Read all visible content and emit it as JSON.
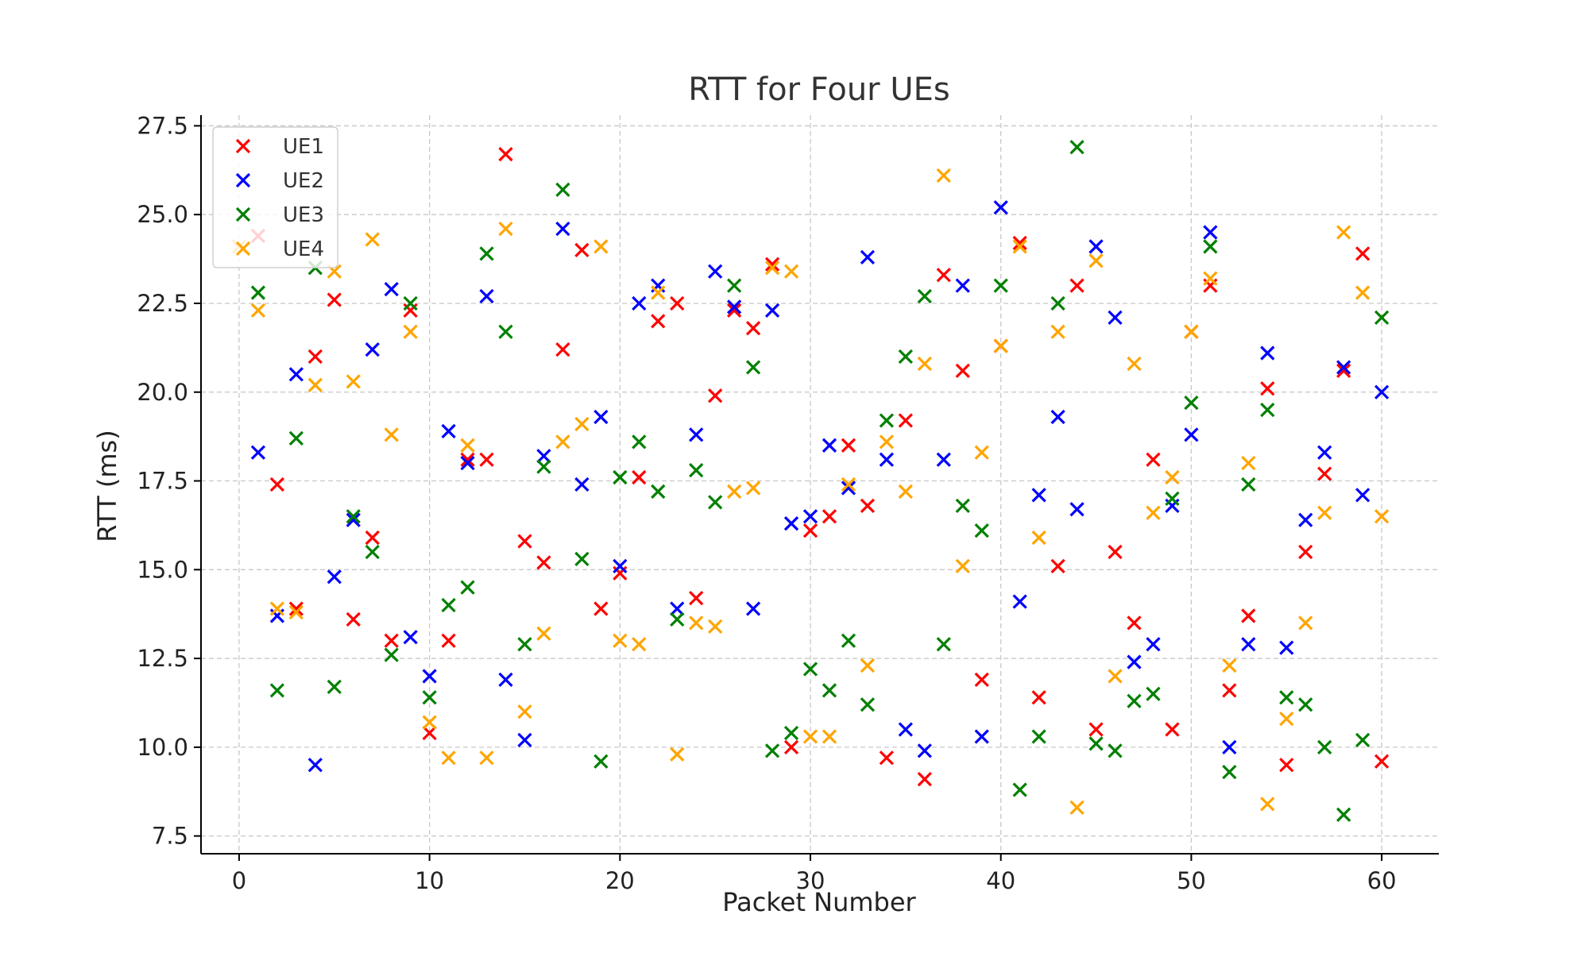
{
  "chart_data": {
    "type": "scatter",
    "title": "RTT for Four UEs",
    "xlabel": "Packet Number",
    "ylabel": "RTT (ms)",
    "xlim": [
      -2,
      63
    ],
    "ylim": [
      7.0,
      27.8
    ],
    "xticks": [
      0,
      10,
      20,
      30,
      40,
      50,
      60
    ],
    "yticks": [
      7.5,
      10.0,
      12.5,
      15.0,
      17.5,
      20.0,
      22.5,
      25.0,
      27.5
    ],
    "grid": true,
    "legend_position": "top-left",
    "marker": "x",
    "series": [
      {
        "name": "UE1",
        "color": "#ff0000",
        "x": [
          1,
          2,
          3,
          4,
          5,
          6,
          7,
          8,
          9,
          10,
          11,
          12,
          13,
          14,
          15,
          16,
          17,
          18,
          19,
          20,
          21,
          22,
          23,
          24,
          25,
          26,
          27,
          28,
          29,
          30,
          31,
          32,
          33,
          34,
          35,
          36,
          37,
          38,
          39,
          40,
          41,
          42,
          43,
          44,
          45,
          46,
          47,
          48,
          49,
          50,
          51,
          52,
          53,
          54,
          55,
          56,
          57,
          58,
          59,
          60
        ],
        "y": [
          24.4,
          17.4,
          13.9,
          21.0,
          22.6,
          13.6,
          15.9,
          13.0,
          22.3,
          10.4,
          13.0,
          18.1,
          18.1,
          26.7,
          15.8,
          15.2,
          21.2,
          24.0,
          13.9,
          14.9,
          17.6,
          22.0,
          22.5,
          14.2,
          19.9,
          22.3,
          21.8,
          23.6,
          10.0,
          16.1,
          16.5,
          18.5,
          16.8,
          9.7,
          19.2,
          9.1,
          23.3,
          20.6,
          11.9,
          21.3,
          24.2,
          11.4,
          15.1,
          23.0,
          10.5,
          15.5,
          13.5,
          18.1,
          10.5,
          21.7,
          23.0,
          11.6,
          13.7,
          20.1,
          9.5,
          15.5,
          17.7,
          20.6,
          23.9,
          9.6
        ]
      },
      {
        "name": "UE2",
        "color": "#0000ff",
        "x": [
          1,
          2,
          3,
          4,
          5,
          6,
          7,
          8,
          9,
          10,
          11,
          12,
          13,
          14,
          15,
          16,
          17,
          18,
          19,
          20,
          21,
          22,
          23,
          24,
          25,
          26,
          27,
          28,
          29,
          30,
          31,
          32,
          33,
          34,
          35,
          36,
          37,
          38,
          39,
          40,
          41,
          42,
          43,
          44,
          45,
          46,
          47,
          48,
          49,
          50,
          51,
          52,
          53,
          54,
          55,
          56,
          57,
          58,
          59,
          60
        ],
        "y": [
          18.3,
          13.7,
          20.5,
          9.5,
          14.8,
          16.4,
          21.2,
          22.9,
          13.1,
          12.0,
          18.9,
          18.0,
          22.7,
          11.9,
          10.2,
          18.2,
          24.6,
          17.4,
          19.3,
          15.1,
          22.5,
          23.0,
          13.9,
          18.8,
          23.4,
          22.4,
          13.9,
          22.3,
          16.3,
          16.5,
          18.5,
          17.3,
          23.8,
          18.1,
          10.5,
          9.9,
          18.1,
          23.0,
          10.3,
          25.2,
          14.1,
          17.1,
          19.3,
          16.7,
          24.1,
          22.1,
          12.4,
          12.9,
          16.8,
          18.8,
          24.5,
          10.0,
          12.9,
          21.1,
          12.8,
          16.4,
          18.3,
          20.7,
          17.1,
          20.0
        ]
      },
      {
        "name": "UE3",
        "color": "#008000",
        "x": [
          1,
          2,
          3,
          4,
          5,
          6,
          7,
          8,
          9,
          10,
          11,
          12,
          13,
          14,
          15,
          16,
          17,
          18,
          19,
          20,
          21,
          22,
          23,
          24,
          25,
          26,
          27,
          28,
          29,
          30,
          31,
          32,
          33,
          34,
          35,
          36,
          37,
          38,
          39,
          40,
          41,
          42,
          43,
          44,
          45,
          46,
          47,
          48,
          49,
          50,
          51,
          52,
          53,
          54,
          55,
          56,
          57,
          58,
          59,
          60
        ],
        "y": [
          22.8,
          11.6,
          18.7,
          23.5,
          11.7,
          16.5,
          15.5,
          12.6,
          22.5,
          11.4,
          14.0,
          14.5,
          23.9,
          21.7,
          12.9,
          17.9,
          25.7,
          15.3,
          9.6,
          17.6,
          18.6,
          17.2,
          13.6,
          17.8,
          16.9,
          23.0,
          20.7,
          9.9,
          10.4,
          12.2,
          11.6,
          13.0,
          11.2,
          19.2,
          21.0,
          22.7,
          12.9,
          16.8,
          16.1,
          23.0,
          8.8,
          10.3,
          22.5,
          26.9,
          10.1,
          9.9,
          11.3,
          11.5,
          17.0,
          19.7,
          24.1,
          9.3,
          17.4,
          19.5,
          11.4,
          11.2,
          10.0,
          8.1,
          10.2,
          22.1
        ]
      },
      {
        "name": "UE4",
        "color": "#ffa500",
        "x": [
          0,
          1,
          2,
          3,
          4,
          5,
          6,
          7,
          8,
          9,
          10,
          11,
          12,
          13,
          14,
          15,
          16,
          17,
          18,
          19,
          20,
          21,
          22,
          23,
          24,
          25,
          26,
          27,
          28,
          29,
          30,
          31,
          32,
          33,
          34,
          35,
          36,
          37,
          38,
          39,
          40,
          41,
          42,
          43,
          44,
          45,
          46,
          47,
          48,
          49,
          50,
          51,
          52,
          53,
          54,
          55,
          56,
          57,
          58,
          59,
          60
        ],
        "y": [
          24.1,
          22.3,
          13.9,
          13.8,
          20.2,
          23.4,
          20.3,
          24.3,
          18.8,
          21.7,
          10.7,
          9.7,
          18.5,
          9.7,
          24.6,
          11.0,
          13.2,
          18.6,
          19.1,
          24.1,
          13.0,
          12.9,
          22.8,
          9.8,
          13.5,
          13.4,
          17.2,
          17.3,
          23.5,
          23.4,
          10.3,
          10.3,
          17.4,
          12.3,
          18.6,
          17.2,
          20.8,
          26.1,
          15.1,
          18.3,
          21.3,
          24.1,
          15.9,
          21.7,
          8.3,
          23.7,
          12.0,
          20.8,
          16.6,
          17.6,
          21.7,
          23.2,
          12.3,
          18.0,
          8.4,
          10.8,
          13.5,
          16.6,
          24.5,
          22.8,
          16.5
        ]
      }
    ]
  }
}
